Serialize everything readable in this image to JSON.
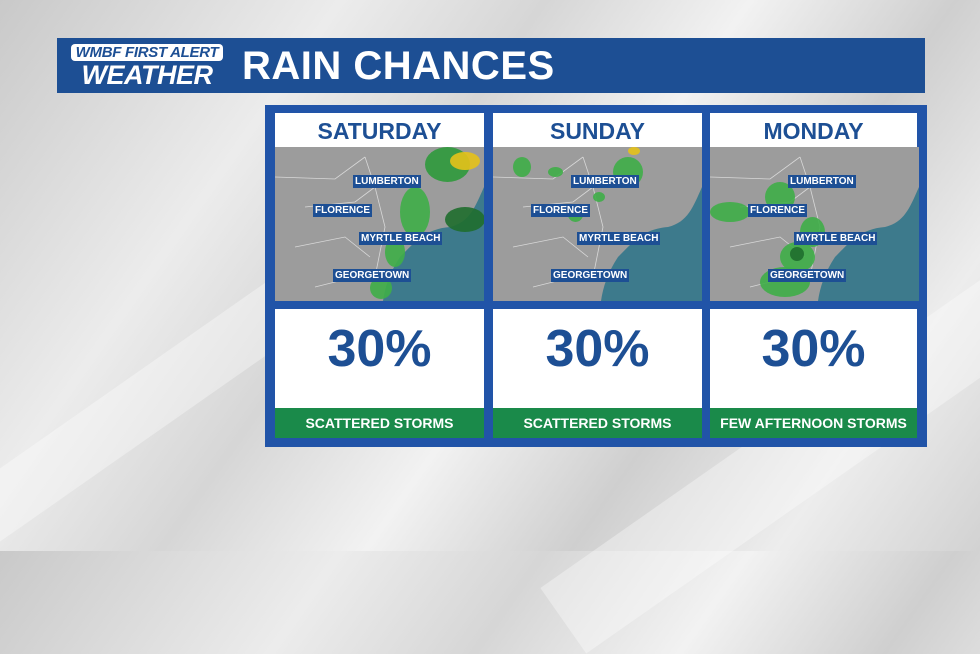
{
  "header": {
    "logo_line1": "WMBF FIRST ALERT",
    "logo_line2": "WEATHER",
    "title": "RAIN CHANCES"
  },
  "colors": {
    "brand_blue": "#1d4f94",
    "panel_blue": "#2154a8",
    "condition_green": "#1a8a4a",
    "rain_green": "#3fae48",
    "ocean": "#3d7a8c",
    "land": "#9c9c9c"
  },
  "cities": [
    "LUMBERTON",
    "FLORENCE",
    "MYRTLE BEACH",
    "GEORGETOWN"
  ],
  "days": [
    {
      "day": "SATURDAY",
      "chance": "30%",
      "chance_value": 30,
      "condition": "SCATTERED STORMS"
    },
    {
      "day": "SUNDAY",
      "chance": "30%",
      "chance_value": 30,
      "condition": "SCATTERED STORMS"
    },
    {
      "day": "MONDAY",
      "chance": "30%",
      "chance_value": 30,
      "condition": "FEW AFTERNOON STORMS"
    }
  ]
}
